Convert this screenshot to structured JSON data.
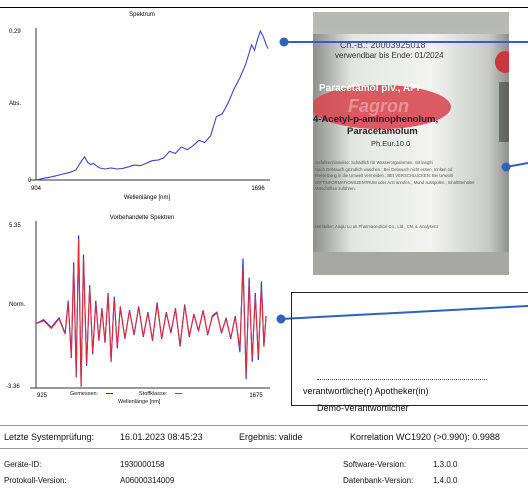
{
  "spectrum": {
    "title": "Spektrum",
    "ylabel": "Abs.",
    "xlabel": "Wellenlänge [nm]",
    "y_top": "0.29",
    "y_bottom": "0",
    "x_left": "904",
    "x_right": "1696"
  },
  "processed": {
    "title": "Vorbehandelte Spektren",
    "ylabel": "Norm.",
    "xlabel": "Wellenlänge [nm]",
    "y_top": "5.35",
    "y_bottom": "-3.36",
    "x_left": "925",
    "x_right": "1675",
    "legend_measured": "Gemessen:",
    "legend_class": "Stoffklasse:",
    "color_measured": "#2233cc",
    "color_class": "#e02a3a"
  },
  "chart_data": [
    {
      "type": "line",
      "title": "Spektrum",
      "xlabel": "Wellenlänge [nm]",
      "ylabel": "Abs.",
      "xlim": [
        904,
        1696
      ],
      "ylim": [
        0,
        0.29
      ],
      "series": [
        {
          "x": [
            904,
            930,
            960,
            990,
            1020,
            1040,
            1060,
            1070,
            1080,
            1090,
            1100,
            1110,
            1120,
            1140,
            1160,
            1180,
            1200,
            1220,
            1240,
            1260,
            1280,
            1300,
            1320,
            1340,
            1360,
            1380,
            1400,
            1420,
            1440,
            1460,
            1480,
            1500,
            1520,
            1540,
            1560,
            1580,
            1600,
            1620,
            1640,
            1650,
            1660,
            1670,
            1680,
            1690,
            1696
          ],
          "values": [
            0.0,
            0.003,
            0.006,
            0.01,
            0.014,
            0.018,
            0.035,
            0.042,
            0.032,
            0.028,
            0.03,
            0.026,
            0.022,
            0.02,
            0.022,
            0.02,
            0.021,
            0.024,
            0.027,
            0.026,
            0.03,
            0.035,
            0.036,
            0.04,
            0.052,
            0.048,
            0.06,
            0.055,
            0.062,
            0.072,
            0.068,
            0.08,
            0.115,
            0.12,
            0.14,
            0.165,
            0.185,
            0.21,
            0.245,
            0.235,
            0.255,
            0.27,
            0.26,
            0.245,
            0.238
          ]
        }
      ]
    },
    {
      "type": "line",
      "title": "Vorbehandelte Spektren",
      "xlabel": "Wellenlänge [nm]",
      "ylabel": "Norm.",
      "xlim": [
        925,
        1675
      ],
      "ylim": [
        -3.36,
        5.35
      ],
      "series": [
        {
          "name": "Gemessen",
          "x": [
            925,
            950,
            975,
            1000,
            1020,
            1030,
            1040,
            1048,
            1056,
            1064,
            1072,
            1080,
            1090,
            1100,
            1110,
            1120,
            1130,
            1140,
            1150,
            1160,
            1170,
            1180,
            1190,
            1200,
            1215,
            1230,
            1245,
            1260,
            1275,
            1290,
            1305,
            1320,
            1335,
            1350,
            1365,
            1380,
            1395,
            1410,
            1425,
            1440,
            1455,
            1470,
            1485,
            1500,
            1515,
            1530,
            1545,
            1560,
            1575,
            1590,
            1600,
            1610,
            1620,
            1630,
            1640,
            1650,
            1660,
            1668,
            1675
          ],
          "values": [
            0.0,
            0.2,
            -0.2,
            0.3,
            -0.5,
            1.2,
            -1.8,
            3.2,
            -2.8,
            4.6,
            -3.3,
            3.6,
            -2.2,
            2.0,
            -1.6,
            1.2,
            -0.9,
            0.8,
            -1.0,
            1.6,
            -2.0,
            1.4,
            -1.3,
            0.9,
            -0.8,
            0.7,
            -0.6,
            0.9,
            -0.7,
            0.6,
            -0.9,
            1.1,
            -0.8,
            0.6,
            -0.5,
            0.8,
            -1.2,
            1.0,
            -0.7,
            0.5,
            -0.4,
            0.7,
            -0.6,
            0.4,
            0.6,
            -0.5,
            0.3,
            -0.8,
            0.4,
            -1.5,
            3.4,
            -2.9,
            2.4,
            -2.0,
            1.6,
            -1.9,
            2.2,
            -1.2,
            0.4
          ]
        },
        {
          "name": "Stoffklasse",
          "x": [
            925,
            950,
            975,
            1000,
            1020,
            1030,
            1040,
            1048,
            1056,
            1064,
            1072,
            1080,
            1090,
            1100,
            1110,
            1120,
            1130,
            1140,
            1150,
            1160,
            1170,
            1180,
            1190,
            1200,
            1215,
            1230,
            1245,
            1260,
            1275,
            1290,
            1305,
            1320,
            1335,
            1350,
            1365,
            1380,
            1395,
            1410,
            1425,
            1440,
            1455,
            1470,
            1485,
            1500,
            1515,
            1530,
            1545,
            1560,
            1575,
            1590,
            1600,
            1610,
            1620,
            1630,
            1640,
            1650,
            1660,
            1668,
            1675
          ],
          "values": [
            0.0,
            0.15,
            -0.25,
            0.25,
            -0.55,
            1.1,
            -1.7,
            3.0,
            -2.7,
            4.4,
            -3.2,
            3.4,
            -2.1,
            1.9,
            -1.5,
            1.1,
            -0.85,
            0.75,
            -0.95,
            1.5,
            -1.9,
            1.3,
            -1.2,
            0.85,
            -0.75,
            0.65,
            -0.55,
            0.85,
            -0.65,
            0.55,
            -0.85,
            1.0,
            -0.75,
            0.55,
            -0.45,
            0.75,
            -1.1,
            0.95,
            -0.65,
            0.45,
            -0.35,
            0.65,
            -0.55,
            0.35,
            0.55,
            -0.45,
            0.25,
            -0.75,
            0.35,
            -1.3,
            2.9,
            -2.6,
            2.1,
            -1.8,
            1.4,
            -1.7,
            1.9,
            -1.1,
            0.35
          ]
        }
      ]
    }
  ],
  "photo": {
    "line1": "Ch.-B.: 20003925018",
    "line2": "verwendbar bis Ende: 01/2024",
    "product": "Paracetamol plv., API",
    "brand": "Fagron",
    "chem1": "4-Acetyl-p-aminophenolum,",
    "chem2": "Paracetamolum",
    "pharm": "Ph.Eur.10.0",
    "warn1": "Gefahrenhinweise: Schädlich für Wasserorganismen, mit langfri",
    "warn2": "Nach Gebrauch gründlich waschen.; Bei Gebrauch nicht essen, trinken od",
    "warn3": "Freisetzung in die Umwelt vermeiden.; BEI VERSCHLUCKEN: Bei Unwohl",
    "warn4": "GIFTINFORMATIONSZENTRUM oder Arzt anrufen.; Mund ausspülen.; Inhalt/Behälter",
    "warn5": "Vorschriften zuführen.",
    "maker": "Hersteller: Anqiu Lu an Pharmaceutical Co., Ltd., CN, s. Analysenz"
  },
  "notes": {
    "role": "verantwortliche(r) Apotheker(in)",
    "name": "Demo-Verantwortlicher"
  },
  "status": {
    "check_label": "Letzte Systemprüfung:",
    "check_value": "16.01.2023 08:45:23",
    "result_label": "Ergebnis:",
    "result_value": "valide",
    "correlation": "Korrelation WC1920 (>0.990): 0.9988"
  },
  "info": {
    "device_label": "Geräte-ID:",
    "device_value": "1930000158",
    "protocol_label": "Protokoll-Version:",
    "protocol_value": "A06000314009",
    "software_label": "Software-Version:",
    "software_value": "1.3.0.0",
    "db_label": "Datenbank-Version:",
    "db_value": "1.4.0.0"
  }
}
